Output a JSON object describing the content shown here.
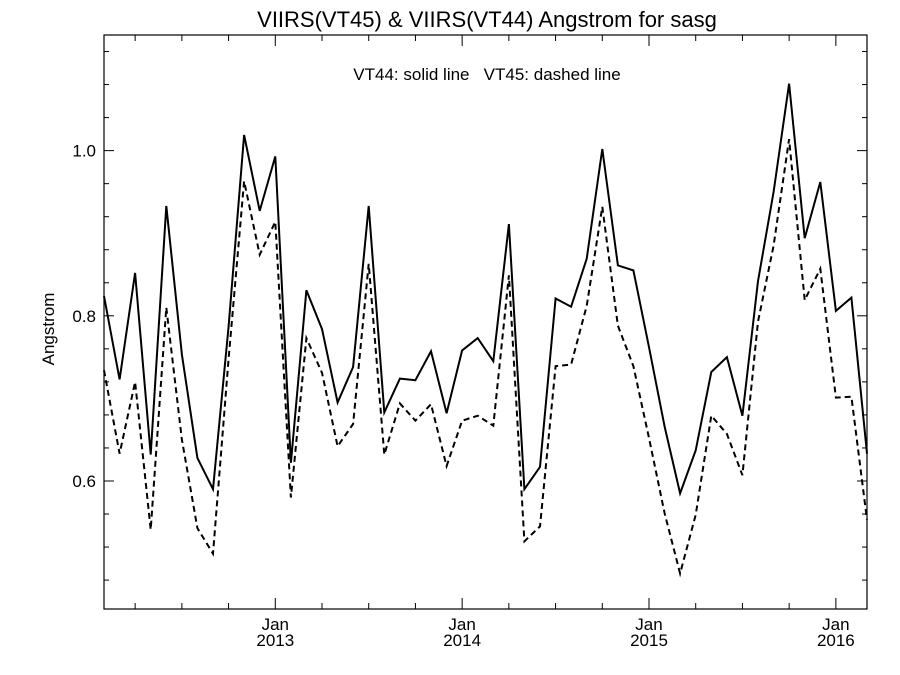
{
  "chart_data": {
    "type": "line",
    "title": "VIIRS(VT45) & VIIRS(VT44)  Angstrom for sasg",
    "annotation": "VT44: solid line   VT45: dashed line",
    "ylabel": "Angstrom",
    "xlabel": "",
    "ylim": [
      0.445,
      1.14
    ],
    "xlim": [
      "2012-02-01",
      "2016-03-01"
    ],
    "grid": false,
    "y_ticks": [
      0.6,
      0.8,
      1.0
    ],
    "y_tick_labels": [
      "0.6",
      "0.8",
      "1.0"
    ],
    "x_ticks": [
      {
        "date": "2013-01-01",
        "month": "Jan",
        "year": "2013"
      },
      {
        "date": "2014-01-01",
        "month": "Jan",
        "year": "2014"
      },
      {
        "date": "2015-01-01",
        "month": "Jan",
        "year": "2015"
      },
      {
        "date": "2016-01-01",
        "month": "Jan",
        "year": "2016"
      }
    ],
    "x": [
      "2012-02-01",
      "2012-03-01",
      "2012-04-01",
      "2012-05-01",
      "2012-06-01",
      "2012-07-01",
      "2012-08-01",
      "2012-09-01",
      "2012-10-01",
      "2012-11-01",
      "2012-12-01",
      "2013-01-01",
      "2013-02-01",
      "2013-03-01",
      "2013-04-01",
      "2013-05-01",
      "2013-06-01",
      "2013-07-01",
      "2013-08-01",
      "2013-09-01",
      "2013-10-01",
      "2013-11-01",
      "2013-12-01",
      "2014-01-01",
      "2014-02-01",
      "2014-03-01",
      "2014-04-01",
      "2014-05-01",
      "2014-06-01",
      "2014-07-01",
      "2014-08-01",
      "2014-09-01",
      "2014-10-01",
      "2014-11-01",
      "2014-12-01",
      "2015-01-01",
      "2015-02-01",
      "2015-03-01",
      "2015-04-01",
      "2015-05-01",
      "2015-06-01",
      "2015-07-01",
      "2015-08-01",
      "2015-09-01",
      "2015-10-01",
      "2015-11-01",
      "2015-12-01",
      "2016-01-01",
      "2016-02-01",
      "2016-03-01"
    ],
    "series": [
      {
        "name": "VT44",
        "style": "solid",
        "values": [
          0.824,
          0.723,
          0.852,
          0.632,
          0.933,
          0.753,
          0.628,
          0.59,
          0.787,
          1.019,
          0.927,
          0.993,
          0.622,
          0.831,
          0.784,
          0.695,
          0.738,
          0.933,
          0.683,
          0.724,
          0.722,
          0.757,
          0.682,
          0.758,
          0.773,
          0.745,
          0.911,
          0.59,
          0.617,
          0.821,
          0.811,
          0.869,
          1.002,
          0.861,
          0.855,
          0.762,
          0.666,
          0.585,
          0.637,
          0.732,
          0.75,
          0.679,
          0.842,
          0.95,
          1.081,
          0.894,
          0.962,
          0.806,
          0.822,
          0.633
        ]
      },
      {
        "name": "VT45",
        "style": "dashed",
        "values": [
          0.734,
          0.633,
          0.72,
          0.541,
          0.81,
          0.65,
          0.543,
          0.512,
          0.748,
          0.963,
          0.874,
          0.914,
          0.58,
          0.773,
          0.731,
          0.642,
          0.669,
          0.863,
          0.632,
          0.694,
          0.673,
          0.693,
          0.618,
          0.673,
          0.679,
          0.667,
          0.849,
          0.527,
          0.545,
          0.739,
          0.741,
          0.812,
          0.932,
          0.788,
          0.739,
          0.652,
          0.561,
          0.488,
          0.559,
          0.679,
          0.657,
          0.607,
          0.793,
          0.885,
          1.014,
          0.819,
          0.857,
          0.701,
          0.702,
          0.553
        ]
      }
    ]
  }
}
